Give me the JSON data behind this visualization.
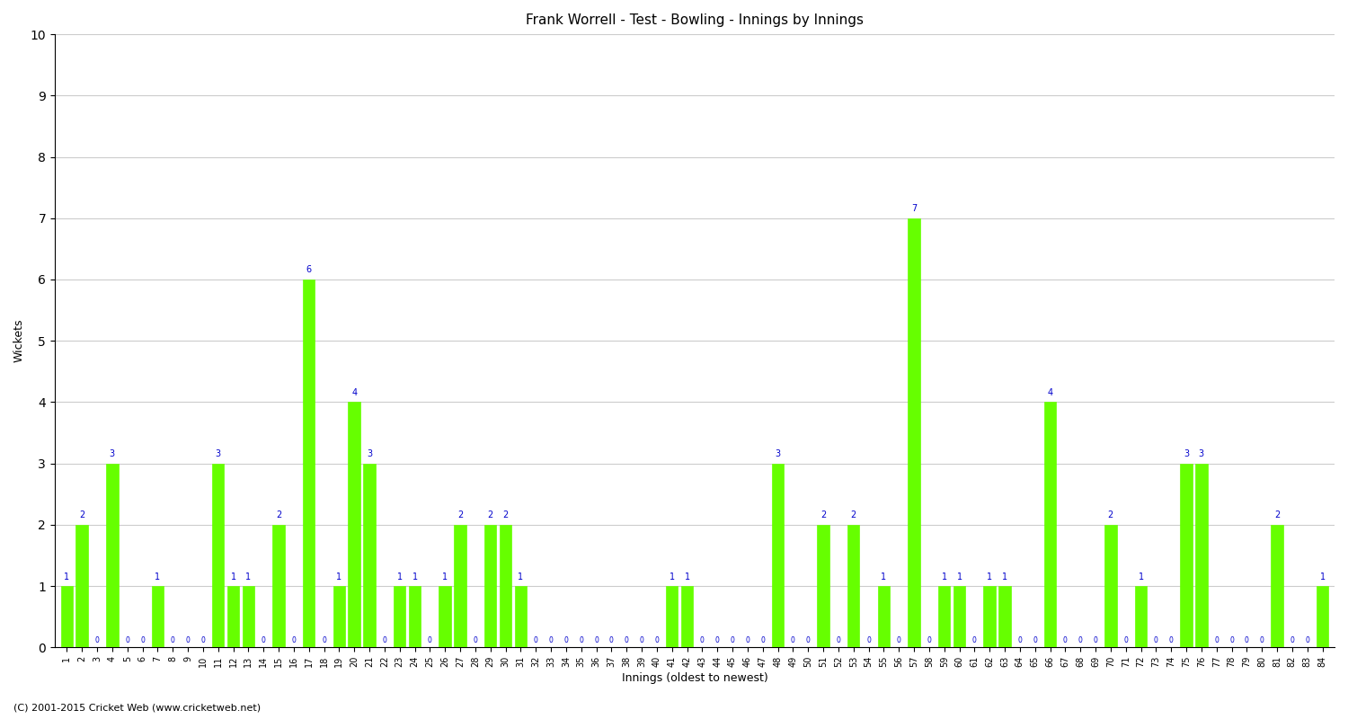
{
  "title": "Frank Worrell - Test - Bowling - Innings by Innings",
  "xlabel": "Innings (oldest to newest)",
  "ylabel": "Wickets",
  "ylim": [
    0,
    10
  ],
  "yticks": [
    0,
    1,
    2,
    3,
    4,
    5,
    6,
    7,
    8,
    9,
    10
  ],
  "bar_color": "#66ff00",
  "bar_edge_color": "#66ff00",
  "label_color": "#0000cc",
  "background_color": "#ffffff",
  "grid_color": "#cccccc",
  "categories": [
    "1",
    "2",
    "3",
    "4",
    "5",
    "6",
    "7",
    "8",
    "9",
    "10",
    "11",
    "12",
    "13",
    "14",
    "15",
    "16",
    "17",
    "18",
    "19",
    "20",
    "21",
    "22",
    "23",
    "24",
    "25",
    "26",
    "27",
    "28",
    "29",
    "30",
    "31",
    "32",
    "33",
    "34",
    "35",
    "36",
    "37",
    "38",
    "39",
    "40",
    "41",
    "42",
    "43",
    "44",
    "45",
    "46",
    "47",
    "48",
    "49",
    "50",
    "51",
    "52",
    "53",
    "54",
    "55",
    "56",
    "57",
    "58",
    "59",
    "60",
    "61",
    "62",
    "63",
    "64",
    "65",
    "66",
    "67",
    "68",
    "69",
    "70",
    "71",
    "72",
    "73",
    "74",
    "75",
    "76",
    "77",
    "78",
    "79",
    "80",
    "81",
    "82",
    "83",
    "84"
  ],
  "values": [
    1,
    2,
    0,
    3,
    0,
    0,
    1,
    0,
    0,
    0,
    3,
    1,
    1,
    0,
    2,
    0,
    6,
    0,
    1,
    4,
    3,
    0,
    1,
    1,
    0,
    1,
    2,
    0,
    2,
    2,
    1,
    0,
    0,
    0,
    0,
    0,
    0,
    0,
    0,
    0,
    1,
    1,
    0,
    0,
    0,
    0,
    0,
    3,
    0,
    0,
    2,
    0,
    2,
    0,
    1,
    0,
    7,
    0,
    1,
    1,
    0,
    1,
    1,
    0,
    0,
    4,
    0,
    0,
    0,
    2,
    0,
    1,
    0,
    0,
    3,
    3,
    0,
    0,
    0,
    0,
    2,
    0,
    0,
    1
  ],
  "figsize": [
    15.0,
    8.0
  ],
  "dpi": 100,
  "copyright": "(C) 2001-2015 Cricket Web (www.cricketweb.net)"
}
